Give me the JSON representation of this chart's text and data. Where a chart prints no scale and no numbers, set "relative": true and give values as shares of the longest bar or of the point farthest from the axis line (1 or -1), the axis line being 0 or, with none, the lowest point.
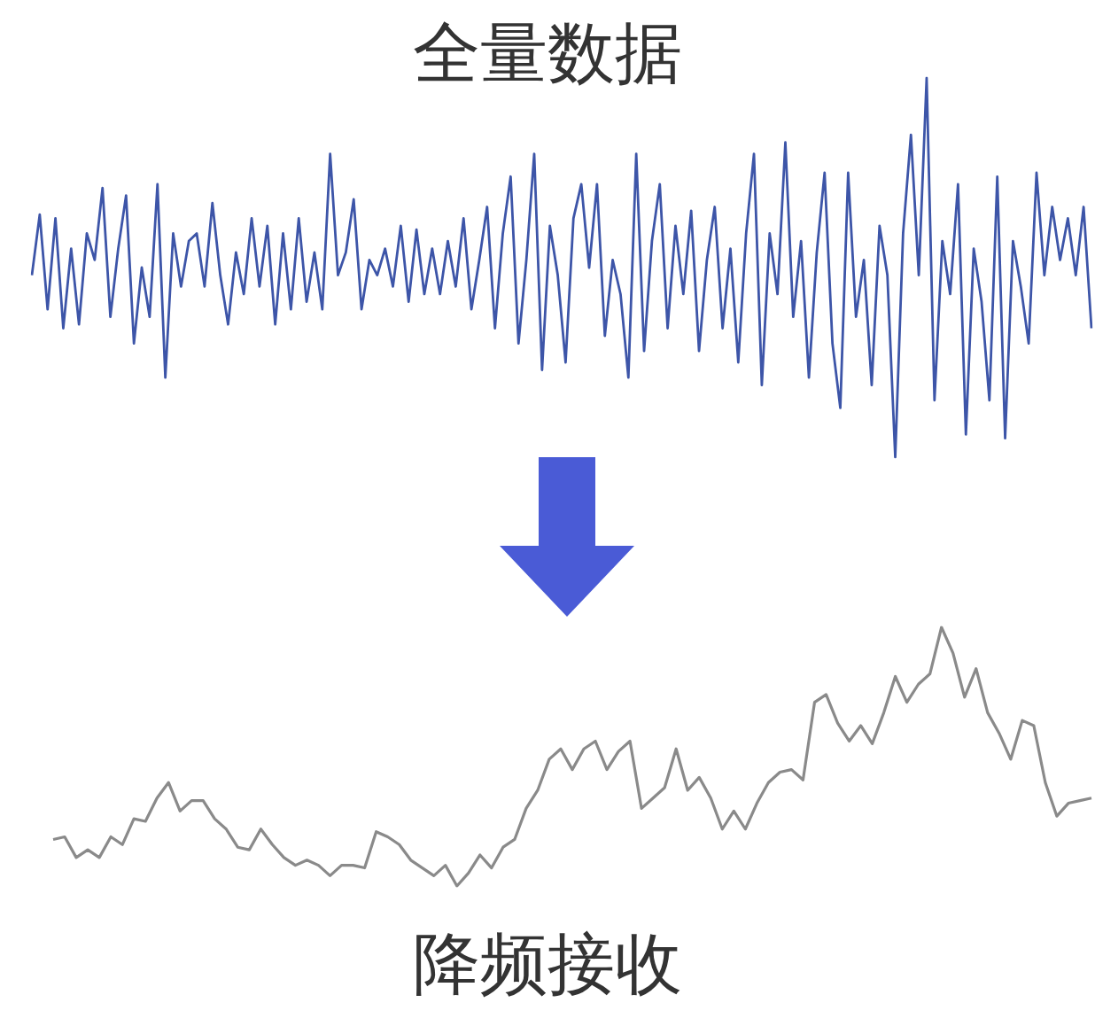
{
  "chart_data": [
    {
      "type": "line",
      "title": "全量数据",
      "relative": true,
      "categories": [
        null,
        null,
        null,
        null,
        null,
        null,
        null,
        null,
        null,
        null,
        null,
        null,
        null,
        null,
        null,
        null,
        null,
        null,
        null,
        null,
        null,
        null,
        null,
        null,
        null,
        null,
        null,
        null,
        null,
        null,
        null,
        null,
        null,
        null,
        null,
        null,
        null,
        null,
        null,
        null,
        null,
        null,
        null,
        null,
        null,
        null,
        null,
        null,
        null,
        null,
        null,
        null,
        null,
        null,
        null,
        null,
        null,
        null,
        null,
        null,
        null,
        null,
        null,
        null,
        null,
        null,
        null,
        null,
        null,
        null,
        null,
        null,
        null,
        null,
        null,
        null,
        null,
        null,
        null,
        null,
        null,
        null,
        null,
        null,
        null,
        null,
        null,
        null,
        null,
        null,
        null,
        null,
        null,
        null,
        null,
        null,
        null,
        null,
        null,
        null,
        null,
        null,
        null,
        null,
        null,
        null,
        null,
        null,
        null,
        null,
        null,
        null,
        null,
        null,
        null,
        null,
        null,
        null,
        null,
        null,
        null,
        null,
        null,
        null,
        null,
        null,
        null,
        null,
        null,
        null,
        null,
        null,
        null,
        null,
        null,
        null
      ],
      "series": [
        {
          "color": "#3d55a8",
          "values": [
            0.48,
            0.64,
            0.39,
            0.63,
            0.34,
            0.55,
            0.35,
            0.59,
            0.52,
            0.71,
            0.37,
            0.55,
            0.69,
            0.3,
            0.5,
            0.37,
            0.72,
            0.21,
            0.59,
            0.45,
            0.57,
            0.59,
            0.45,
            0.67,
            0.48,
            0.35,
            0.54,
            0.43,
            0.63,
            0.45,
            0.61,
            0.35,
            0.59,
            0.39,
            0.63,
            0.41,
            0.54,
            0.39,
            0.8,
            0.48,
            0.54,
            0.68,
            0.39,
            0.52,
            0.48,
            0.55,
            0.45,
            0.61,
            0.41,
            0.6,
            0.43,
            0.55,
            0.43,
            0.57,
            0.45,
            0.63,
            0.39,
            0.52,
            0.66,
            0.34,
            0.59,
            0.74,
            0.3,
            0.52,
            0.8,
            0.23,
            0.61,
            0.48,
            0.25,
            0.63,
            0.72,
            0.5,
            0.72,
            0.32,
            0.52,
            0.43,
            0.21,
            0.8,
            0.28,
            0.57,
            0.72,
            0.34,
            0.61,
            0.43,
            0.65,
            0.28,
            0.52,
            0.66,
            0.34,
            0.55,
            0.25,
            0.59,
            0.8,
            0.19,
            0.59,
            0.43,
            0.83,
            0.37,
            0.57,
            0.21,
            0.54,
            0.75,
            0.3,
            0.13,
            0.75,
            0.37,
            0.52,
            0.19,
            0.61,
            0.48,
            0,
            0.59,
            0.85,
            0.48,
            1,
            0.15,
            0.57,
            0.43,
            0.72,
            0.06,
            0.55,
            0.41,
            0.15,
            0.74,
            0.05,
            0.57,
            0.45,
            0.3,
            0.75,
            0.48,
            0.66,
            0.52,
            0.63,
            0.48,
            0.66,
            0.34
          ]
        }
      ]
    },
    {
      "type": "line",
      "title": "降频接收",
      "relative": true,
      "categories": [
        null,
        null,
        null,
        null,
        null,
        null,
        null,
        null,
        null,
        null,
        null,
        null,
        null,
        null,
        null,
        null,
        null,
        null,
        null,
        null,
        null,
        null,
        null,
        null,
        null,
        null,
        null,
        null,
        null,
        null,
        null,
        null,
        null,
        null,
        null,
        null,
        null,
        null,
        null,
        null,
        null,
        null,
        null,
        null,
        null,
        null,
        null,
        null,
        null,
        null,
        null,
        null,
        null,
        null,
        null,
        null,
        null,
        null,
        null,
        null,
        null,
        null,
        null,
        null,
        null,
        null,
        null,
        null,
        null,
        null,
        null,
        null,
        null,
        null,
        null,
        null,
        null,
        null,
        null,
        null,
        null,
        null,
        null,
        null,
        null,
        null,
        null,
        null,
        null,
        null,
        null
      ],
      "series": [
        {
          "color": "#8a8a8a",
          "values": [
            0.18,
            0.19,
            0.11,
            0.14,
            0.11,
            0.19,
            0.16,
            0.26,
            0.25,
            0.34,
            0.4,
            0.29,
            0.33,
            0.33,
            0.26,
            0.22,
            0.15,
            0.14,
            0.22,
            0.16,
            0.11,
            0.08,
            0.1,
            0.08,
            0.04,
            0.08,
            0.08,
            0.07,
            0.21,
            0.19,
            0.16,
            0.1,
            0.07,
            0.04,
            0.08,
            0,
            0.05,
            0.12,
            0.07,
            0.15,
            0.18,
            0.3,
            0.37,
            0.49,
            0.53,
            0.45,
            0.53,
            0.56,
            0.45,
            0.52,
            0.56,
            0.3,
            0.34,
            0.38,
            0.53,
            0.37,
            0.42,
            0.34,
            0.22,
            0.29,
            0.22,
            0.32,
            0.4,
            0.44,
            0.45,
            0.41,
            0.71,
            0.74,
            0.63,
            0.56,
            0.62,
            0.55,
            0.67,
            0.81,
            0.71,
            0.78,
            0.82,
            1,
            0.9,
            0.73,
            0.84,
            0.67,
            0.59,
            0.49,
            0.64,
            0.62,
            0.4,
            0.27,
            0.32,
            0.33,
            0.34
          ]
        }
      ]
    }
  ]
}
